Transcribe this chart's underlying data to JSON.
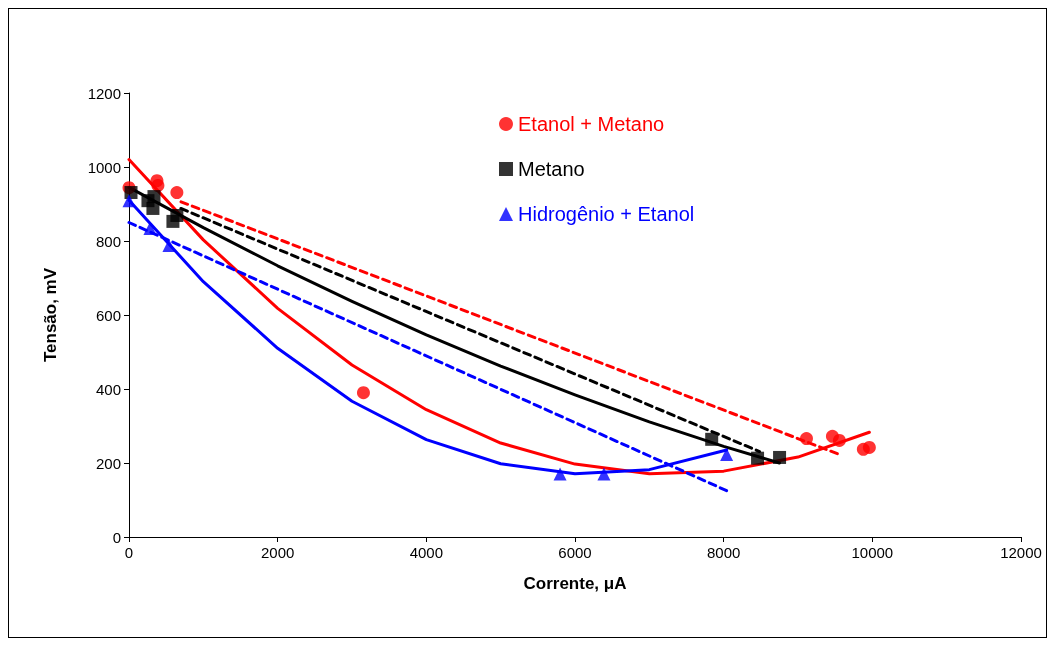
{
  "chart_data": {
    "type": "scatter",
    "xlabel": "Corrente, μA",
    "ylabel": "Tensão, mV",
    "xlim": [
      0,
      12000
    ],
    "xticks": [
      0,
      2000,
      4000,
      6000,
      8000,
      10000,
      12000
    ],
    "ylim": [
      0,
      1200
    ],
    "yticks": [
      0,
      200,
      400,
      600,
      800,
      1000,
      1200
    ],
    "grid": false,
    "legend": "top",
    "series": [
      {
        "name": "Etanol + Metano",
        "color": "#ff0000",
        "marker": "circle",
        "x": [
          0,
          376,
          389,
          644,
          3154,
          9114,
          9463,
          9557,
          9879,
          9960
        ],
        "values": [
          944,
          963,
          950,
          931,
          390,
          266,
          272,
          261,
          237,
          242
        ]
      },
      {
        "name": "Metano",
        "color": "#000000",
        "marker": "square",
        "x": [
          27,
          255,
          322,
          336,
          591,
          644,
          7839,
          8456,
          8752
        ],
        "values": [
          931,
          909,
          888,
          920,
          853,
          869,
          264,
          213,
          215
        ]
      },
      {
        "name": "Hidrogênio + Etanol",
        "color": "#0000ff",
        "marker": "triangle",
        "x": [
          0,
          282,
          537,
          5799,
          6389,
          8040
        ],
        "values": [
          909,
          834,
          788,
          170,
          170,
          223
        ]
      },
      {
        "type": "line",
        "color": "#ff0000",
        "line_style": "solid",
        "marker": "none",
        "x": [
          0,
          1000,
          2000,
          3000,
          4000,
          5000,
          6000,
          7000,
          8000,
          9000,
          9960
        ],
        "values": [
          1020,
          803,
          618,
          465,
          344,
          254,
          197,
          171,
          178,
          216,
          283
        ]
      },
      {
        "type": "line",
        "color": "#000000",
        "line_style": "solid",
        "marker": "none",
        "x": [
          0,
          1000,
          2000,
          3000,
          4000,
          5000,
          6000,
          7000,
          8000,
          8750
        ],
        "values": [
          945,
          836,
          733,
          637,
          546,
          462,
          384,
          311,
          245,
          200
        ]
      },
      {
        "type": "line",
        "color": "#0000ff",
        "line_style": "solid",
        "marker": "none",
        "x": [
          0,
          1000,
          2000,
          3000,
          4000,
          5000,
          6000,
          7000,
          8040
        ],
        "values": [
          910,
          690,
          510,
          367,
          263,
          198,
          171,
          182,
          235
        ]
      },
      {
        "type": "line",
        "color": "#ff0000",
        "line_style": "dashed",
        "marker": "none",
        "x": [
          700,
          9557
        ],
        "values": [
          906,
          223
        ]
      },
      {
        "type": "line",
        "color": "#000000",
        "line_style": "dashed",
        "marker": "none",
        "x": [
          698,
          8483
        ],
        "values": [
          888,
          231
        ]
      },
      {
        "type": "line",
        "color": "#0000ff",
        "line_style": "dashed",
        "marker": "none",
        "x": [
          0,
          8054
        ],
        "values": [
          850,
          124
        ]
      }
    ]
  }
}
